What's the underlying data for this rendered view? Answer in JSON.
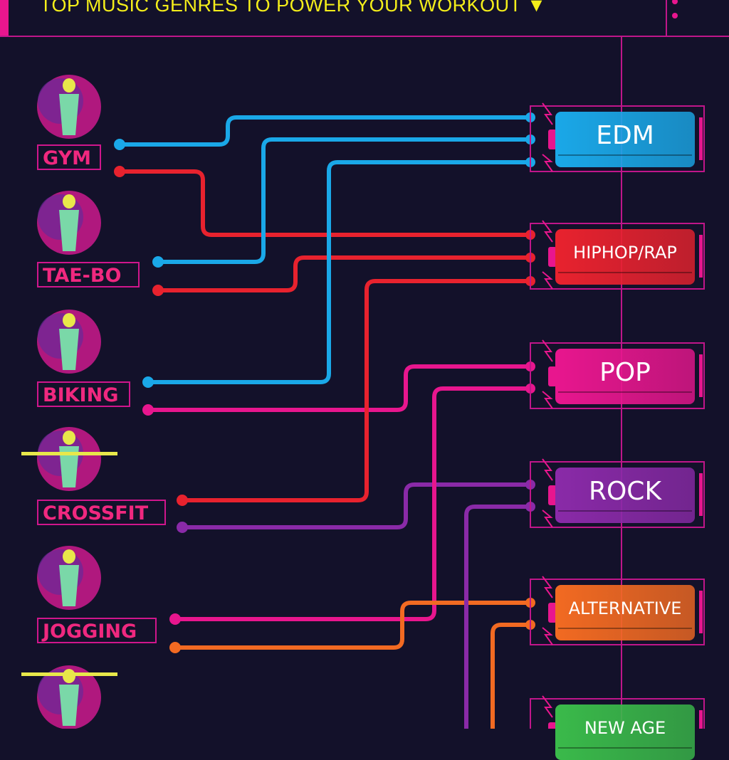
{
  "header": {
    "title": "TOP MUSIC GENRES TO POWER YOUR WORKOUT",
    "arrow_icon": "triangle-down-icon"
  },
  "colors": {
    "background": "#13112a",
    "frame": "#c0168a",
    "title": "#f4ee1a"
  },
  "activities": [
    {
      "label": "GYM",
      "icon": "stationary-bike-icon"
    },
    {
      "label": "TAE-BO",
      "icon": "kickboxing-icon"
    },
    {
      "label": "BIKING",
      "icon": "cyclist-icon"
    },
    {
      "label": "CROSSFIT",
      "icon": "weightlifter-icon"
    },
    {
      "label": "JOGGING",
      "icon": "runner-icon"
    },
    {
      "label": "",
      "icon": "barbell-overhead-icon"
    }
  ],
  "genres": [
    {
      "label": "EDM",
      "color": "#1aa8e8"
    },
    {
      "label": "HIPHOP/RAP",
      "color": "#e8222e"
    },
    {
      "label": "POP",
      "color": "#e8168e"
    },
    {
      "label": "ROCK",
      "color": "#8a2aa8"
    },
    {
      "label": "ALTERNATIVE",
      "color": "#f26a22"
    },
    {
      "label": "NEW AGE",
      "color": "#3aba4a"
    }
  ],
  "connections": [
    {
      "activity": "GYM",
      "genre": "EDM"
    },
    {
      "activity": "GYM",
      "genre": "HIPHOP/RAP"
    },
    {
      "activity": "TAE-BO",
      "genre": "EDM"
    },
    {
      "activity": "TAE-BO",
      "genre": "HIPHOP/RAP"
    },
    {
      "activity": "BIKING",
      "genre": "EDM"
    },
    {
      "activity": "BIKING",
      "genre": "POP"
    },
    {
      "activity": "CROSSFIT",
      "genre": "HIPHOP/RAP"
    },
    {
      "activity": "CROSSFIT",
      "genre": "ROCK"
    },
    {
      "activity": "JOGGING",
      "genre": "POP"
    },
    {
      "activity": "JOGGING",
      "genre": "ALTERNATIVE"
    },
    {
      "activity": "",
      "genre": "ROCK"
    },
    {
      "activity": "",
      "genre": "ALTERNATIVE"
    }
  ]
}
